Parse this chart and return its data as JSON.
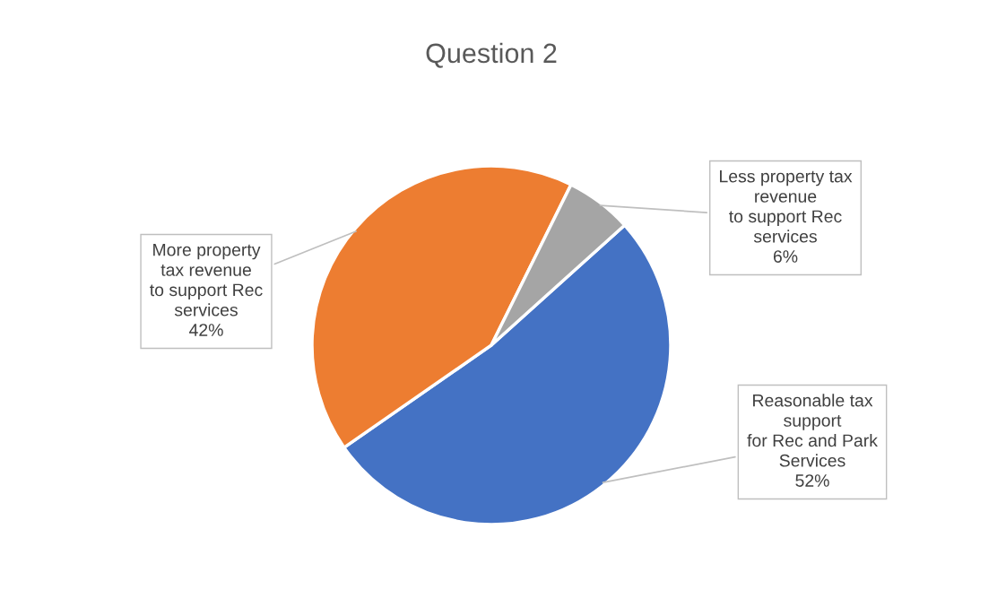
{
  "chart_data": {
    "type": "pie",
    "title": "Question 2",
    "categories": [
      "Reasonable tax\nsupport\nfor Rec and Park\nServices",
      "More property\ntax revenue\nto support Rec\nservices",
      "Less property tax\nrevenue\nto support Rec\nservices"
    ],
    "values": [
      52,
      42,
      6
    ],
    "value_labels": [
      "52%",
      "42%",
      "6%"
    ],
    "colors": [
      "#4472c4",
      "#ed7d31",
      "#a5a5a5"
    ]
  }
}
